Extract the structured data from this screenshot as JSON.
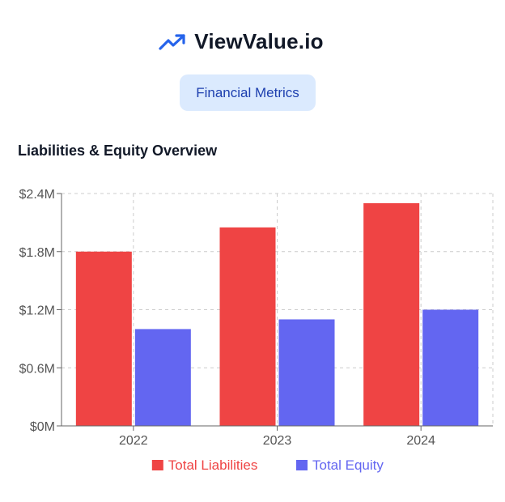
{
  "brand": {
    "name": "ViewValue.io",
    "icon": "trending-up-icon",
    "icon_color": "#2563eb"
  },
  "badge": {
    "label": "Financial Metrics",
    "background": "#dbeafe",
    "text_color": "#1e40af"
  },
  "chart_title": "Liabilities & Equity Overview",
  "chart_data": {
    "type": "bar",
    "title": "Liabilities & Equity Overview",
    "categories": [
      "2022",
      "2023",
      "2024"
    ],
    "series": [
      {
        "name": "Total Liabilities",
        "color": "#ef4444",
        "values": [
          1800000,
          2050000,
          2300000
        ]
      },
      {
        "name": "Total Equity",
        "color": "#6366f1",
        "values": [
          1000000,
          1100000,
          1200000
        ]
      }
    ],
    "y_ticks": [
      0,
      600000,
      1200000,
      1800000,
      2400000
    ],
    "y_tick_labels": [
      "$0M",
      "$0.6M",
      "$1.2M",
      "$1.8M",
      "$2.4M"
    ],
    "ylim": [
      0,
      2400000
    ],
    "xlabel": "",
    "ylabel": "",
    "grid": true,
    "legend_position": "bottom"
  }
}
